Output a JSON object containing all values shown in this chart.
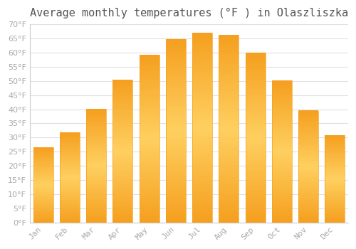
{
  "title": "Average monthly temperatures (°F ) in Olaszliszka",
  "months": [
    "Jan",
    "Feb",
    "Mar",
    "Apr",
    "May",
    "Jun",
    "Jul",
    "Aug",
    "Sep",
    "Oct",
    "Nov",
    "Dec"
  ],
  "values": [
    26.5,
    31.8,
    40.1,
    50.4,
    59.2,
    64.8,
    67.1,
    66.3,
    60.0,
    50.2,
    39.5,
    30.8
  ],
  "bar_color_center": "#FFD060",
  "bar_color_edge": "#F5A020",
  "ylim": [
    0,
    70
  ],
  "yticks": [
    0,
    5,
    10,
    15,
    20,
    25,
    30,
    35,
    40,
    45,
    50,
    55,
    60,
    65,
    70
  ],
  "background_color": "#FFFFFF",
  "grid_color": "#E0E0E0",
  "title_fontsize": 11,
  "tick_fontsize": 8,
  "axis_label_color": "#AAAAAA",
  "title_color": "#555555"
}
